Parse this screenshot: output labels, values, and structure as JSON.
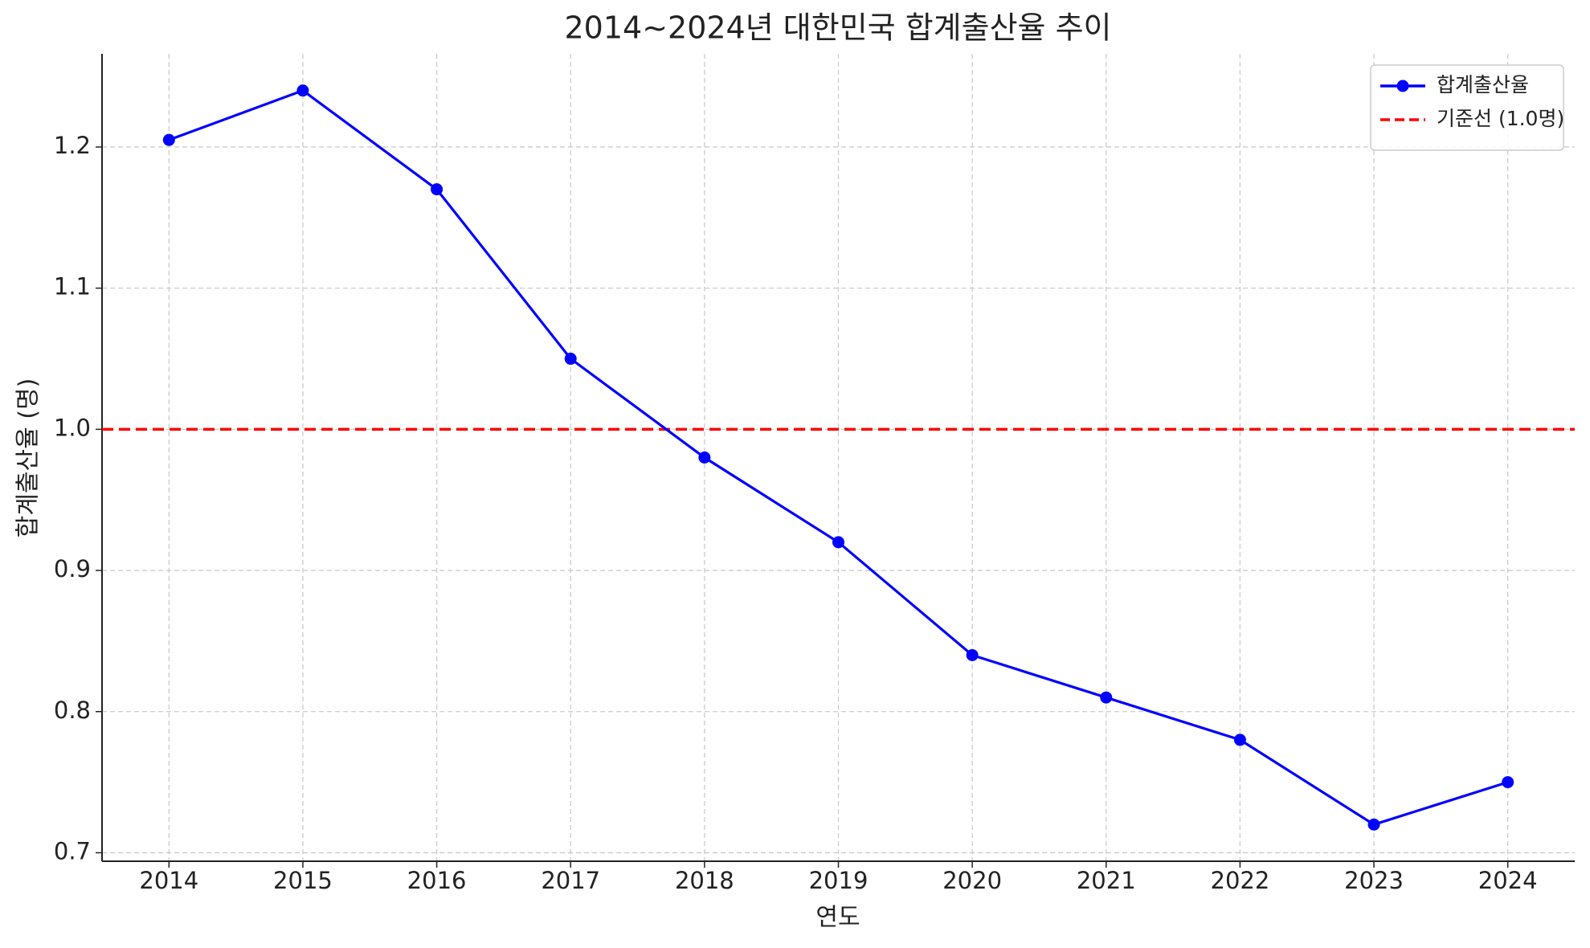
{
  "chart_data": {
    "type": "line",
    "title": "2014~2024년 대한민국 합계출산율 추이",
    "x_label": "연도",
    "y_label": "합계출산율 (명)",
    "x": [
      2014,
      2015,
      2016,
      2017,
      2018,
      2019,
      2020,
      2021,
      2022,
      2023,
      2024
    ],
    "series": [
      {
        "name": "합계출산율",
        "color": "#0000ff",
        "values": [
          1.205,
          1.24,
          1.17,
          1.05,
          0.98,
          0.92,
          0.84,
          0.81,
          0.78,
          0.72,
          0.75
        ]
      }
    ],
    "reference_line": {
      "name": "기준선 (1.0명)",
      "value": 1.0,
      "color": "#ff0000"
    },
    "xlim": [
      2013.5,
      2024.5
    ],
    "xticks": [
      2014,
      2015,
      2016,
      2017,
      2018,
      2019,
      2020,
      2021,
      2022,
      2023,
      2024
    ],
    "ylim": [
      0.694,
      1.266
    ],
    "yticks": [
      {
        "value": 0.7,
        "label": "0.7"
      },
      {
        "value": 0.8,
        "label": "0.8"
      },
      {
        "value": 0.9,
        "label": "0.9"
      },
      {
        "value": 1.0,
        "label": "1.0"
      },
      {
        "value": 1.1,
        "label": "1.1"
      },
      {
        "value": 1.2,
        "label": "1.2"
      }
    ],
    "grid": true,
    "legend": "upper right"
  }
}
